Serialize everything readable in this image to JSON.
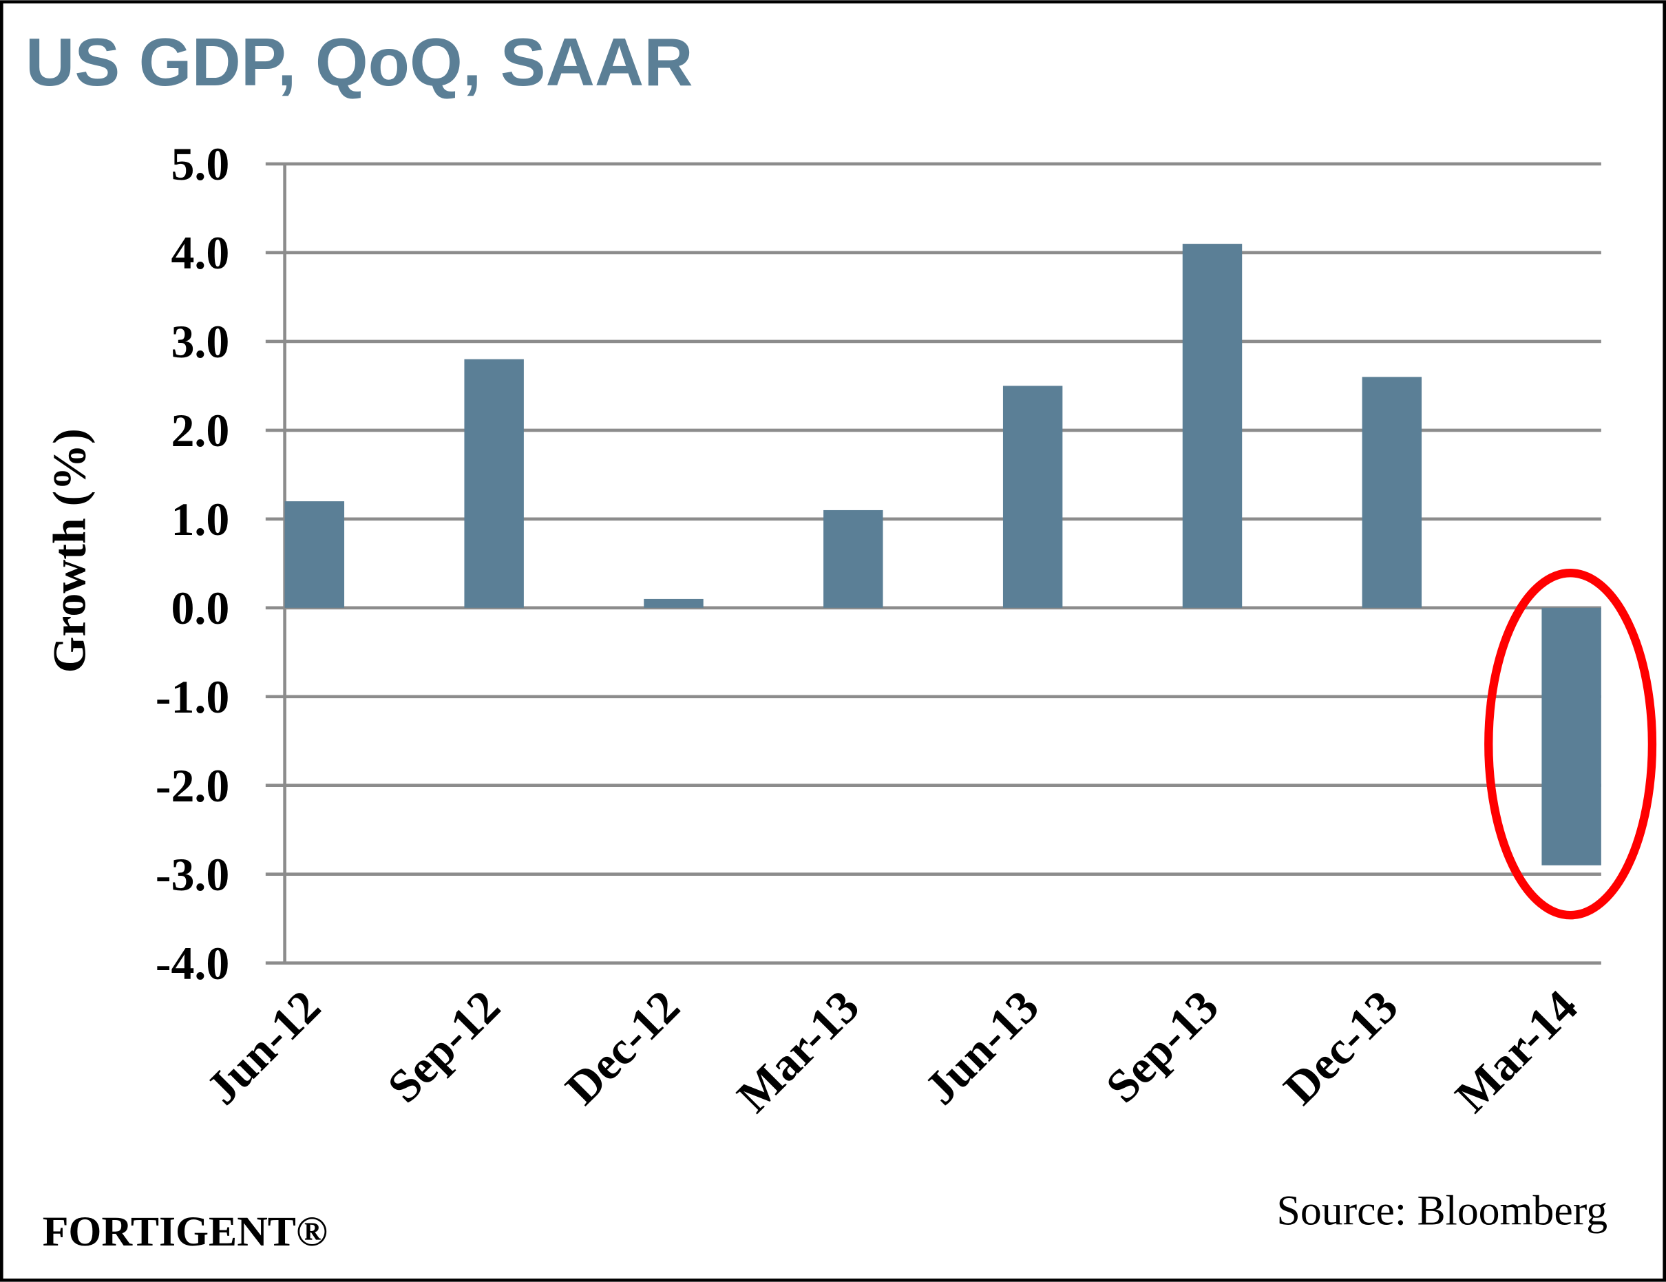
{
  "chart_data": {
    "type": "bar",
    "title": "US GDP, QoQ, SAAR",
    "xlabel": "",
    "ylabel": "Growth (%)",
    "ylim": [
      -4.0,
      5.0
    ],
    "yticks": [
      "5.0",
      "4.0",
      "3.0",
      "2.0",
      "1.0",
      "0.0",
      "-1.0",
      "-2.0",
      "-3.0",
      "-4.0"
    ],
    "grid": true,
    "categories": [
      "Jun-12",
      "Sep-12",
      "Dec-12",
      "Mar-13",
      "Jun-13",
      "Sep-13",
      "Dec-13",
      "Mar-14"
    ],
    "values": [
      1.2,
      2.8,
      0.1,
      1.1,
      2.5,
      4.1,
      2.6,
      -2.9
    ],
    "bar_color": "#5b7f96",
    "highlight": {
      "category": "Mar-14",
      "shape": "ellipse",
      "color": "#ff0000"
    },
    "source": "Source: Bloomberg",
    "brand": "FORTIGENT®"
  }
}
